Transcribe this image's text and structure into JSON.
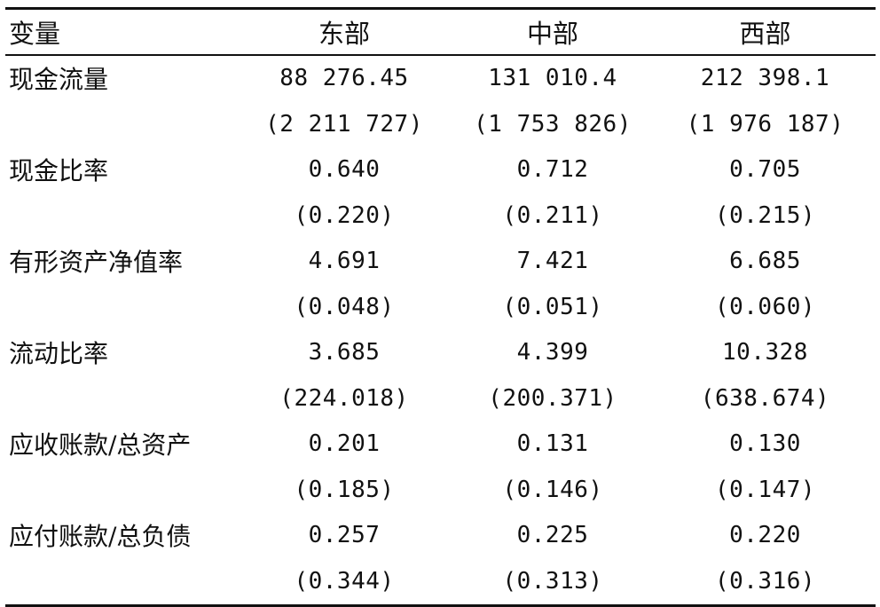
{
  "header": {
    "variable": "变量",
    "east": "东部",
    "central": "中部",
    "west": "西部"
  },
  "rows": [
    {
      "label": "现金流量",
      "values": [
        "88 276.45",
        "131 010.4",
        "212 398.1"
      ],
      "se": [
        "(2 211 727)",
        "(1 753 826)",
        "(1 976 187)"
      ]
    },
    {
      "label": "现金比率",
      "values": [
        "0.640",
        "0.712",
        "0.705"
      ],
      "se": [
        "(0.220)",
        "(0.211)",
        "(0.215)"
      ]
    },
    {
      "label": "有形资产净值率",
      "values": [
        "4.691",
        "7.421",
        "6.685"
      ],
      "se": [
        "(0.048)",
        "(0.051)",
        "(0.060)"
      ]
    },
    {
      "label": "流动比率",
      "values": [
        "3.685",
        "4.399",
        "10.328"
      ],
      "se": [
        "(224.018)",
        "(200.371)",
        "(638.674)"
      ]
    },
    {
      "label": "应收账款/总资产",
      "values": [
        "0.201",
        "0.131",
        "0.130"
      ],
      "se": [
        "(0.185)",
        "(0.146)",
        "(0.147)"
      ]
    },
    {
      "label": "应付账款/总负债",
      "values": [
        "0.257",
        "0.225",
        "0.220"
      ],
      "se": [
        "(0.344)",
        "(0.313)",
        "(0.316)"
      ]
    }
  ]
}
